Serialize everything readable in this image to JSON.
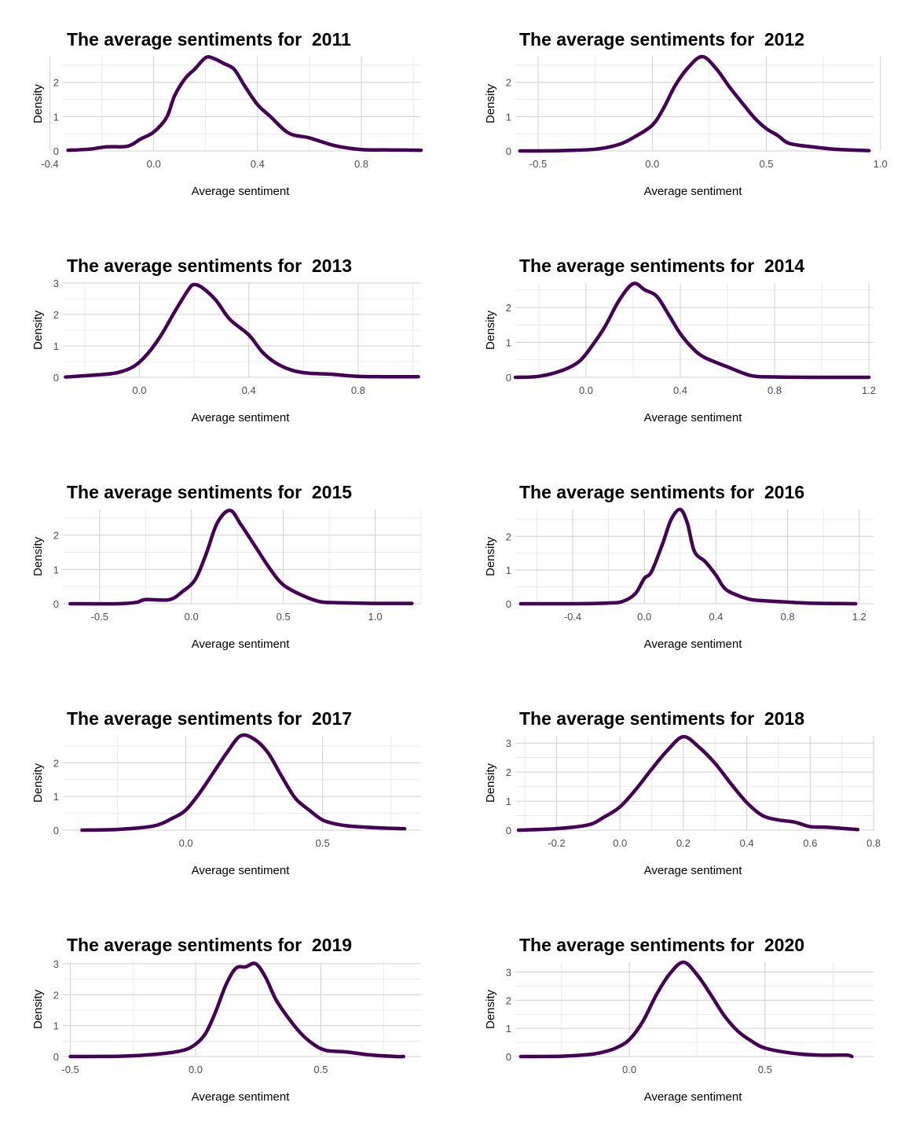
{
  "chart_data": [
    {
      "type": "line",
      "title": "The average sentiments for  2011",
      "xlabel": "Average sentiment",
      "ylabel": "Density",
      "xlim": [
        -0.35,
        1.03
      ],
      "ylim": [
        0,
        2.75
      ],
      "xticks": [
        -0.4,
        0.0,
        0.4,
        0.8
      ],
      "xtick_labels": [
        "-0.4",
        "0.0",
        "0.4",
        "0.8"
      ],
      "yticks": [
        0,
        1,
        2
      ],
      "ytick_labels": [
        "0",
        "1",
        "2"
      ],
      "grid": true,
      "color": "#440154",
      "series": [
        {
          "x": [
            -0.33,
            -0.25,
            -0.18,
            -0.1,
            -0.05,
            0.0,
            0.05,
            0.08,
            0.12,
            0.16,
            0.2,
            0.23,
            0.27,
            0.31,
            0.35,
            0.4,
            0.45,
            0.52,
            0.6,
            0.7,
            0.8,
            0.9,
            1.03
          ],
          "y": [
            0.02,
            0.05,
            0.12,
            0.14,
            0.35,
            0.55,
            0.98,
            1.6,
            2.1,
            2.4,
            2.72,
            2.7,
            2.55,
            2.38,
            1.9,
            1.35,
            1.0,
            0.52,
            0.38,
            0.15,
            0.04,
            0.03,
            0.02
          ]
        }
      ]
    },
    {
      "type": "line",
      "title": "The average sentiments for  2012",
      "xlabel": "Average sentiment",
      "ylabel": "Density",
      "xlim": [
        -0.6,
        0.97
      ],
      "ylim": [
        0,
        2.75
      ],
      "xticks": [
        -0.5,
        0.0,
        0.5,
        1.0
      ],
      "xtick_labels": [
        "-0.5",
        "0.0",
        "0.5",
        "1.0"
      ],
      "yticks": [
        0,
        1,
        2
      ],
      "ytick_labels": [
        "0",
        "1",
        "2"
      ],
      "grid": true,
      "color": "#440154",
      "series": [
        {
          "x": [
            -0.58,
            -0.4,
            -0.25,
            -0.15,
            -0.08,
            0.0,
            0.05,
            0.1,
            0.16,
            0.22,
            0.28,
            0.34,
            0.4,
            0.45,
            0.5,
            0.55,
            0.6,
            0.7,
            0.8,
            0.95
          ],
          "y": [
            0.0,
            0.01,
            0.05,
            0.18,
            0.4,
            0.75,
            1.25,
            1.9,
            2.45,
            2.75,
            2.4,
            1.85,
            1.35,
            0.95,
            0.65,
            0.45,
            0.22,
            0.12,
            0.05,
            0.01
          ]
        }
      ]
    },
    {
      "type": "line",
      "title": "The average sentiments for  2013",
      "xlabel": "Average sentiment",
      "ylabel": "Density",
      "xlim": [
        -0.28,
        1.03
      ],
      "ylim": [
        0,
        3.0
      ],
      "xticks": [
        0.0,
        0.4,
        0.8
      ],
      "xtick_labels": [
        "0.0",
        "0.4",
        "0.8"
      ],
      "yticks": [
        0,
        1,
        2,
        3
      ],
      "ytick_labels": [
        "0",
        "1",
        "2",
        "3"
      ],
      "grid": true,
      "color": "#440154",
      "series": [
        {
          "x": [
            -0.27,
            -0.15,
            -0.08,
            -0.02,
            0.03,
            0.08,
            0.13,
            0.18,
            0.2,
            0.23,
            0.28,
            0.33,
            0.4,
            0.45,
            0.5,
            0.56,
            0.62,
            0.7,
            0.8,
            0.9,
            1.02
          ],
          "y": [
            0.01,
            0.08,
            0.15,
            0.35,
            0.75,
            1.35,
            2.1,
            2.8,
            2.95,
            2.85,
            2.45,
            1.85,
            1.35,
            0.8,
            0.45,
            0.22,
            0.13,
            0.1,
            0.03,
            0.02,
            0.02
          ]
        }
      ]
    },
    {
      "type": "line",
      "title": "The average sentiments for  2014",
      "xlabel": "Average sentiment",
      "ylabel": "Density",
      "xlim": [
        -0.3,
        1.22
      ],
      "ylim": [
        0,
        2.7
      ],
      "xticks": [
        0.0,
        0.4,
        0.8,
        1.2
      ],
      "xtick_labels": [
        "0.0",
        "0.4",
        "0.8",
        "1.2"
      ],
      "yticks": [
        0,
        1,
        2
      ],
      "ytick_labels": [
        "0",
        "1",
        "2"
      ],
      "grid": true,
      "color": "#440154",
      "series": [
        {
          "x": [
            -0.3,
            -0.2,
            -0.1,
            -0.03,
            0.02,
            0.08,
            0.14,
            0.2,
            0.25,
            0.3,
            0.35,
            0.4,
            0.45,
            0.5,
            0.6,
            0.7,
            0.8,
            1.0,
            1.2
          ],
          "y": [
            0.0,
            0.03,
            0.2,
            0.45,
            0.85,
            1.45,
            2.2,
            2.68,
            2.5,
            2.32,
            1.8,
            1.25,
            0.85,
            0.58,
            0.3,
            0.05,
            0.01,
            0.0,
            0.0
          ]
        }
      ]
    },
    {
      "type": "line",
      "title": "The average sentiments for  2015",
      "xlabel": "Average sentiment",
      "ylabel": "Density",
      "xlim": [
        -0.7,
        1.25
      ],
      "ylim": [
        0,
        2.75
      ],
      "xticks": [
        -0.5,
        0.0,
        0.5,
        1.0
      ],
      "xtick_labels": [
        "-0.5",
        "0.0",
        "0.5",
        "1.0"
      ],
      "yticks": [
        0,
        1,
        2
      ],
      "ytick_labels": [
        "0",
        "1",
        "2"
      ],
      "grid": true,
      "color": "#440154",
      "series": [
        {
          "x": [
            -0.66,
            -0.4,
            -0.3,
            -0.25,
            -0.12,
            -0.05,
            0.02,
            0.08,
            0.14,
            0.21,
            0.27,
            0.35,
            0.43,
            0.5,
            0.6,
            0.7,
            0.8,
            1.0,
            1.2
          ],
          "y": [
            0.0,
            0.0,
            0.04,
            0.12,
            0.12,
            0.35,
            0.7,
            1.45,
            2.35,
            2.72,
            2.3,
            1.65,
            1.0,
            0.55,
            0.25,
            0.06,
            0.03,
            0.01,
            0.01
          ]
        }
      ]
    },
    {
      "type": "line",
      "title": "The average sentiments for  2016",
      "xlabel": "Average sentiment",
      "ylabel": "Density",
      "xlim": [
        -0.72,
        1.28
      ],
      "ylim": [
        0,
        2.8
      ],
      "xticks": [
        -0.4,
        0.0,
        0.4,
        0.8,
        1.2
      ],
      "xtick_labels": [
        "-0.4",
        "0.0",
        "0.4",
        "0.8",
        "1.2"
      ],
      "yticks": [
        0,
        1,
        2
      ],
      "ytick_labels": [
        "0",
        "1",
        "2"
      ],
      "grid": true,
      "color": "#440154",
      "series": [
        {
          "x": [
            -0.69,
            -0.4,
            -0.2,
            -0.12,
            -0.05,
            0.0,
            0.04,
            0.1,
            0.15,
            0.2,
            0.24,
            0.28,
            0.34,
            0.4,
            0.45,
            0.52,
            0.6,
            0.7,
            0.8,
            0.9,
            1.0,
            1.18
          ],
          "y": [
            0.0,
            0.0,
            0.02,
            0.07,
            0.3,
            0.75,
            0.95,
            1.75,
            2.5,
            2.8,
            2.4,
            1.55,
            1.25,
            0.85,
            0.45,
            0.25,
            0.12,
            0.08,
            0.05,
            0.02,
            0.01,
            0.0
          ]
        }
      ]
    },
    {
      "type": "line",
      "title": "The average sentiments for  2017",
      "xlabel": "Average sentiment",
      "ylabel": "Density",
      "xlim": [
        -0.45,
        0.86
      ],
      "ylim": [
        0,
        2.8
      ],
      "xticks": [
        0.0,
        0.5
      ],
      "xtick_labels": [
        "0.0",
        "0.5"
      ],
      "yticks": [
        0,
        1,
        2
      ],
      "ytick_labels": [
        "0",
        "1",
        "2"
      ],
      "grid": true,
      "color": "#440154",
      "series": [
        {
          "x": [
            -0.38,
            -0.25,
            -0.12,
            -0.05,
            0.0,
            0.05,
            0.1,
            0.15,
            0.2,
            0.25,
            0.3,
            0.35,
            0.4,
            0.45,
            0.5,
            0.55,
            0.6,
            0.7,
            0.8
          ],
          "y": [
            0.0,
            0.02,
            0.12,
            0.35,
            0.6,
            1.1,
            1.7,
            2.3,
            2.8,
            2.7,
            2.3,
            1.6,
            0.95,
            0.6,
            0.3,
            0.18,
            0.12,
            0.07,
            0.04
          ]
        }
      ]
    },
    {
      "type": "line",
      "title": "The average sentiments for  2018",
      "xlabel": "Average sentiment",
      "ylabel": "Density",
      "xlim": [
        -0.33,
        0.8
      ],
      "ylim": [
        0,
        3.25
      ],
      "xticks": [
        -0.2,
        0.0,
        0.2,
        0.4,
        0.6,
        0.8
      ],
      "xtick_labels": [
        "-0.2",
        "0.0",
        "0.2",
        "0.4",
        "0.6",
        "0.8"
      ],
      "yticks": [
        0,
        1,
        2,
        3
      ],
      "ytick_labels": [
        "0",
        "1",
        "2",
        "3"
      ],
      "grid": true,
      "color": "#440154",
      "series": [
        {
          "x": [
            -0.32,
            -0.2,
            -0.1,
            -0.05,
            0.0,
            0.05,
            0.1,
            0.15,
            0.2,
            0.25,
            0.3,
            0.35,
            0.4,
            0.45,
            0.5,
            0.55,
            0.6,
            0.65,
            0.75
          ],
          "y": [
            0.0,
            0.05,
            0.18,
            0.45,
            0.8,
            1.4,
            2.1,
            2.75,
            3.22,
            2.85,
            2.3,
            1.6,
            0.95,
            0.5,
            0.35,
            0.28,
            0.12,
            0.1,
            0.02
          ]
        }
      ]
    },
    {
      "type": "line",
      "title": "The average sentiments for  2019",
      "xlabel": "Average sentiment",
      "ylabel": "Density",
      "xlim": [
        -0.53,
        0.9
      ],
      "ylim": [
        0,
        3.05
      ],
      "xticks": [
        -0.5,
        0.0,
        0.5
      ],
      "xtick_labels": [
        "-0.5",
        "0.0",
        "0.5"
      ],
      "yticks": [
        0,
        1,
        2,
        3
      ],
      "ytick_labels": [
        "0",
        "1",
        "2",
        "3"
      ],
      "grid": true,
      "color": "#440154",
      "series": [
        {
          "x": [
            -0.5,
            -0.3,
            -0.15,
            -0.05,
            0.0,
            0.04,
            0.08,
            0.12,
            0.16,
            0.2,
            0.24,
            0.28,
            0.32,
            0.37,
            0.42,
            0.47,
            0.52,
            0.6,
            0.7,
            0.8,
            0.83
          ],
          "y": [
            0.0,
            0.01,
            0.08,
            0.2,
            0.4,
            0.75,
            1.45,
            2.3,
            2.85,
            2.9,
            3.0,
            2.55,
            1.85,
            1.25,
            0.75,
            0.4,
            0.2,
            0.15,
            0.05,
            0.0,
            0.0
          ]
        }
      ]
    },
    {
      "type": "line",
      "title": "The average sentiments for  2020",
      "xlabel": "Average sentiment",
      "ylabel": "Density",
      "xlim": [
        -0.42,
        0.9
      ],
      "ylim": [
        0,
        3.35
      ],
      "xticks": [
        0.0,
        0.5
      ],
      "xtick_labels": [
        "0.0",
        "0.5"
      ],
      "yticks": [
        0,
        1,
        2,
        3
      ],
      "ytick_labels": [
        "0",
        "1",
        "2",
        "3"
      ],
      "grid": true,
      "color": "#440154",
      "series": [
        {
          "x": [
            -0.4,
            -0.25,
            -0.15,
            -0.1,
            -0.05,
            0.0,
            0.05,
            0.1,
            0.15,
            0.2,
            0.25,
            0.3,
            0.35,
            0.4,
            0.45,
            0.5,
            0.6,
            0.7,
            0.8,
            0.82
          ],
          "y": [
            0.0,
            0.01,
            0.07,
            0.15,
            0.3,
            0.6,
            1.25,
            2.2,
            2.95,
            3.35,
            2.9,
            2.2,
            1.45,
            0.9,
            0.55,
            0.3,
            0.12,
            0.05,
            0.05,
            0.0
          ]
        }
      ]
    }
  ]
}
